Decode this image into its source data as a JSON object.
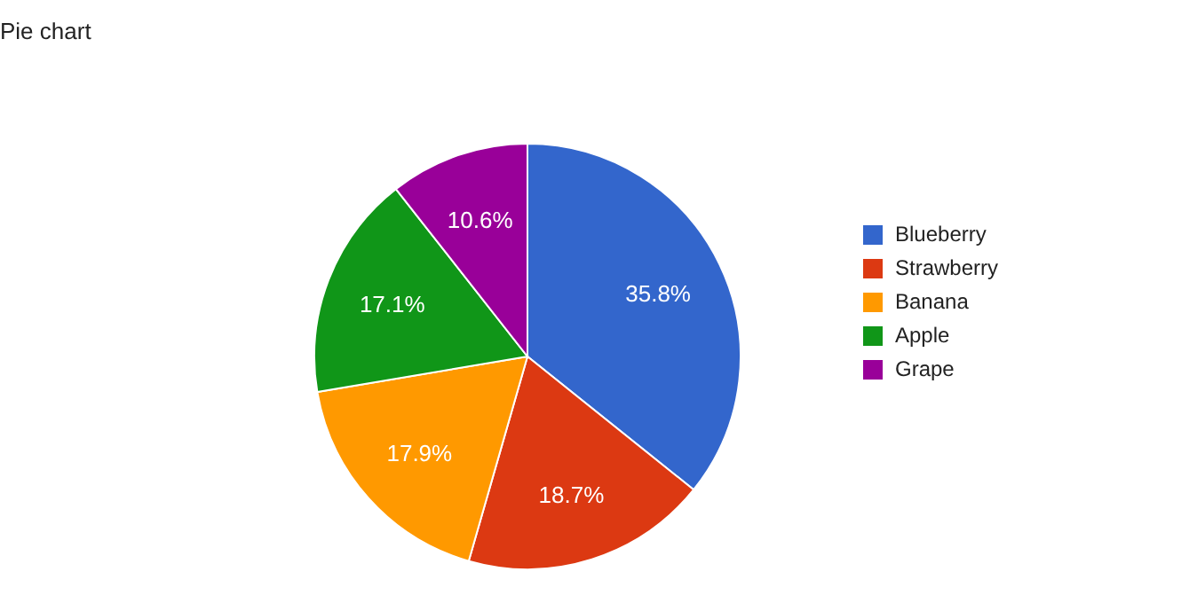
{
  "chart_data": {
    "type": "pie",
    "title": "Pie chart",
    "categories": [
      "Blueberry",
      "Strawberry",
      "Banana",
      "Apple",
      "Grape"
    ],
    "values": [
      35.8,
      18.7,
      17.9,
      17.1,
      10.6
    ],
    "colors": [
      "#3366cc",
      "#dc3912",
      "#ff9900",
      "#109618",
      "#990099"
    ],
    "value_labels": [
      "35.8%",
      "18.7%",
      "17.9%",
      "17.1%",
      "10.6%"
    ],
    "legend": "right"
  }
}
